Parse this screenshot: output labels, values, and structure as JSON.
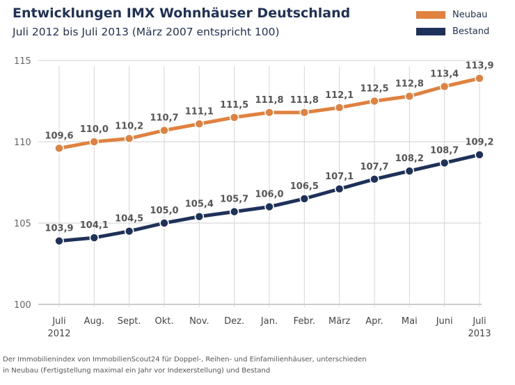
{
  "chart_data": {
    "type": "line",
    "title": "Entwicklungen IMX Wohnhäuser Deutschland",
    "subtitle": "Juli 2012 bis Juli 2013 (März 2007 entspricht 100)",
    "categories": [
      "Juli\n2012",
      "Aug.",
      "Sept.",
      "Okt.",
      "Nov.",
      "Dez.",
      "Jan.",
      "Febr.",
      "März",
      "Apr.",
      "Mai",
      "Juni",
      "Juli\n2013"
    ],
    "series": [
      {
        "name": "Neubau",
        "color": "#e0813f",
        "values": [
          109.6,
          110.0,
          110.2,
          110.7,
          111.1,
          111.5,
          111.8,
          111.8,
          112.1,
          112.5,
          112.8,
          113.4,
          113.9
        ],
        "labels": [
          "109,6",
          "110,0",
          "110,2",
          "110,7",
          "111,1",
          "111,5",
          "111,8",
          "111,8",
          "112,1",
          "112,5",
          "112,8",
          "113,4",
          "113,9"
        ]
      },
      {
        "name": "Bestand",
        "color": "#1e3159",
        "values": [
          103.9,
          104.1,
          104.5,
          105.0,
          105.4,
          105.7,
          106.0,
          106.5,
          107.1,
          107.7,
          108.2,
          108.7,
          109.2
        ],
        "labels": [
          "103,9",
          "104,1",
          "104,5",
          "105,0",
          "105,4",
          "105,7",
          "106,0",
          "106,5",
          "107,1",
          "107,7",
          "108,2",
          "108,7",
          "109,2"
        ]
      }
    ],
    "ylim": [
      100,
      115
    ],
    "yticks": [
      100,
      105,
      110,
      115
    ],
    "xlabel": "",
    "ylabel": "",
    "grid": true,
    "legend_position": "top-right"
  },
  "footnote": [
    "Der Immobilienindex von ImmobilienScout24 für Doppel-, Reihen- und Einfamilienhäuser, unterschieden",
    "in Neubau (Fertigstellung maximal ein Jahr vor Indexerstellung) und Bestand"
  ]
}
